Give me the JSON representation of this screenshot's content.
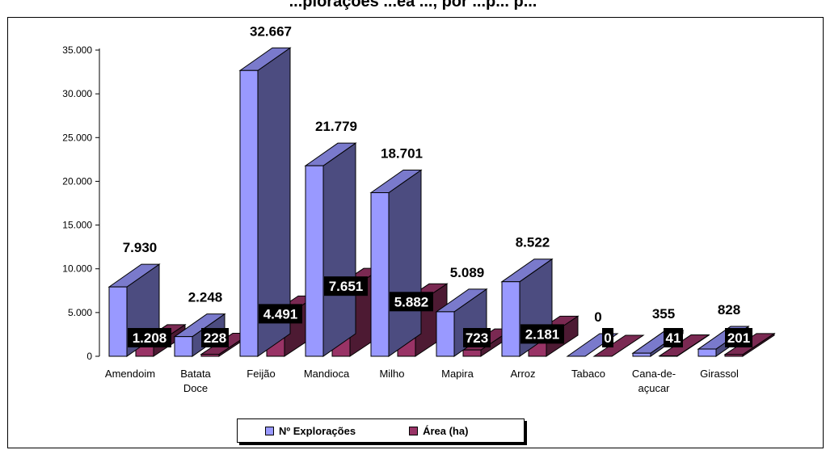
{
  "chart_data": {
    "type": "bar",
    "title": "...plorações ...ea ..., por ...p... p...",
    "xlabel": "",
    "ylabel": "",
    "categories": [
      "Amendoim",
      "Batata Doce",
      "Feijão",
      "Mandioca",
      "Milho",
      "Mapira",
      "Arroz",
      "Tabaco",
      "Cana-de-açucar",
      "Girassol"
    ],
    "category_lines": [
      [
        "Amendoim"
      ],
      [
        "Batata",
        "Doce"
      ],
      [
        "Feijão"
      ],
      [
        "Mandioca"
      ],
      [
        "Milho"
      ],
      [
        "Mapira"
      ],
      [
        "Arroz"
      ],
      [
        "Tabaco"
      ],
      [
        "Cana-de-",
        "açucar"
      ],
      [
        "Girassol"
      ]
    ],
    "ylim": [
      0,
      35000
    ],
    "yticks": [
      0,
      5000,
      10000,
      15000,
      20000,
      25000,
      30000,
      35000
    ],
    "ytick_labels": [
      "0",
      "5.000",
      "10.000",
      "15.000",
      "20.000",
      "25.000",
      "30.000",
      "35.000"
    ],
    "series": [
      {
        "name": "Nº Explorações",
        "values": [
          7930,
          2248,
          32667,
          21779,
          18701,
          5089,
          8522,
          0,
          355,
          828
        ],
        "labels": [
          "7.930",
          "2.248",
          "32.667",
          "21.779",
          "18.701",
          "5.089",
          "8.522",
          "0",
          "355",
          "828"
        ],
        "color": "#9999ff",
        "side_color": "#4c4c80",
        "top_color": "#7a7acc"
      },
      {
        "name": "Área (ha)",
        "values": [
          1208,
          228,
          4491,
          7651,
          5882,
          723,
          2181,
          0,
          41,
          201
        ],
        "labels": [
          "1.208",
          "228",
          "4.491",
          "7.651",
          "5.882",
          "723",
          "2.181",
          "0",
          "41",
          "201"
        ],
        "color": "#993366",
        "side_color": "#4d1a33",
        "top_color": "#7a2952"
      }
    ],
    "grid": false,
    "legend": "bottom"
  }
}
